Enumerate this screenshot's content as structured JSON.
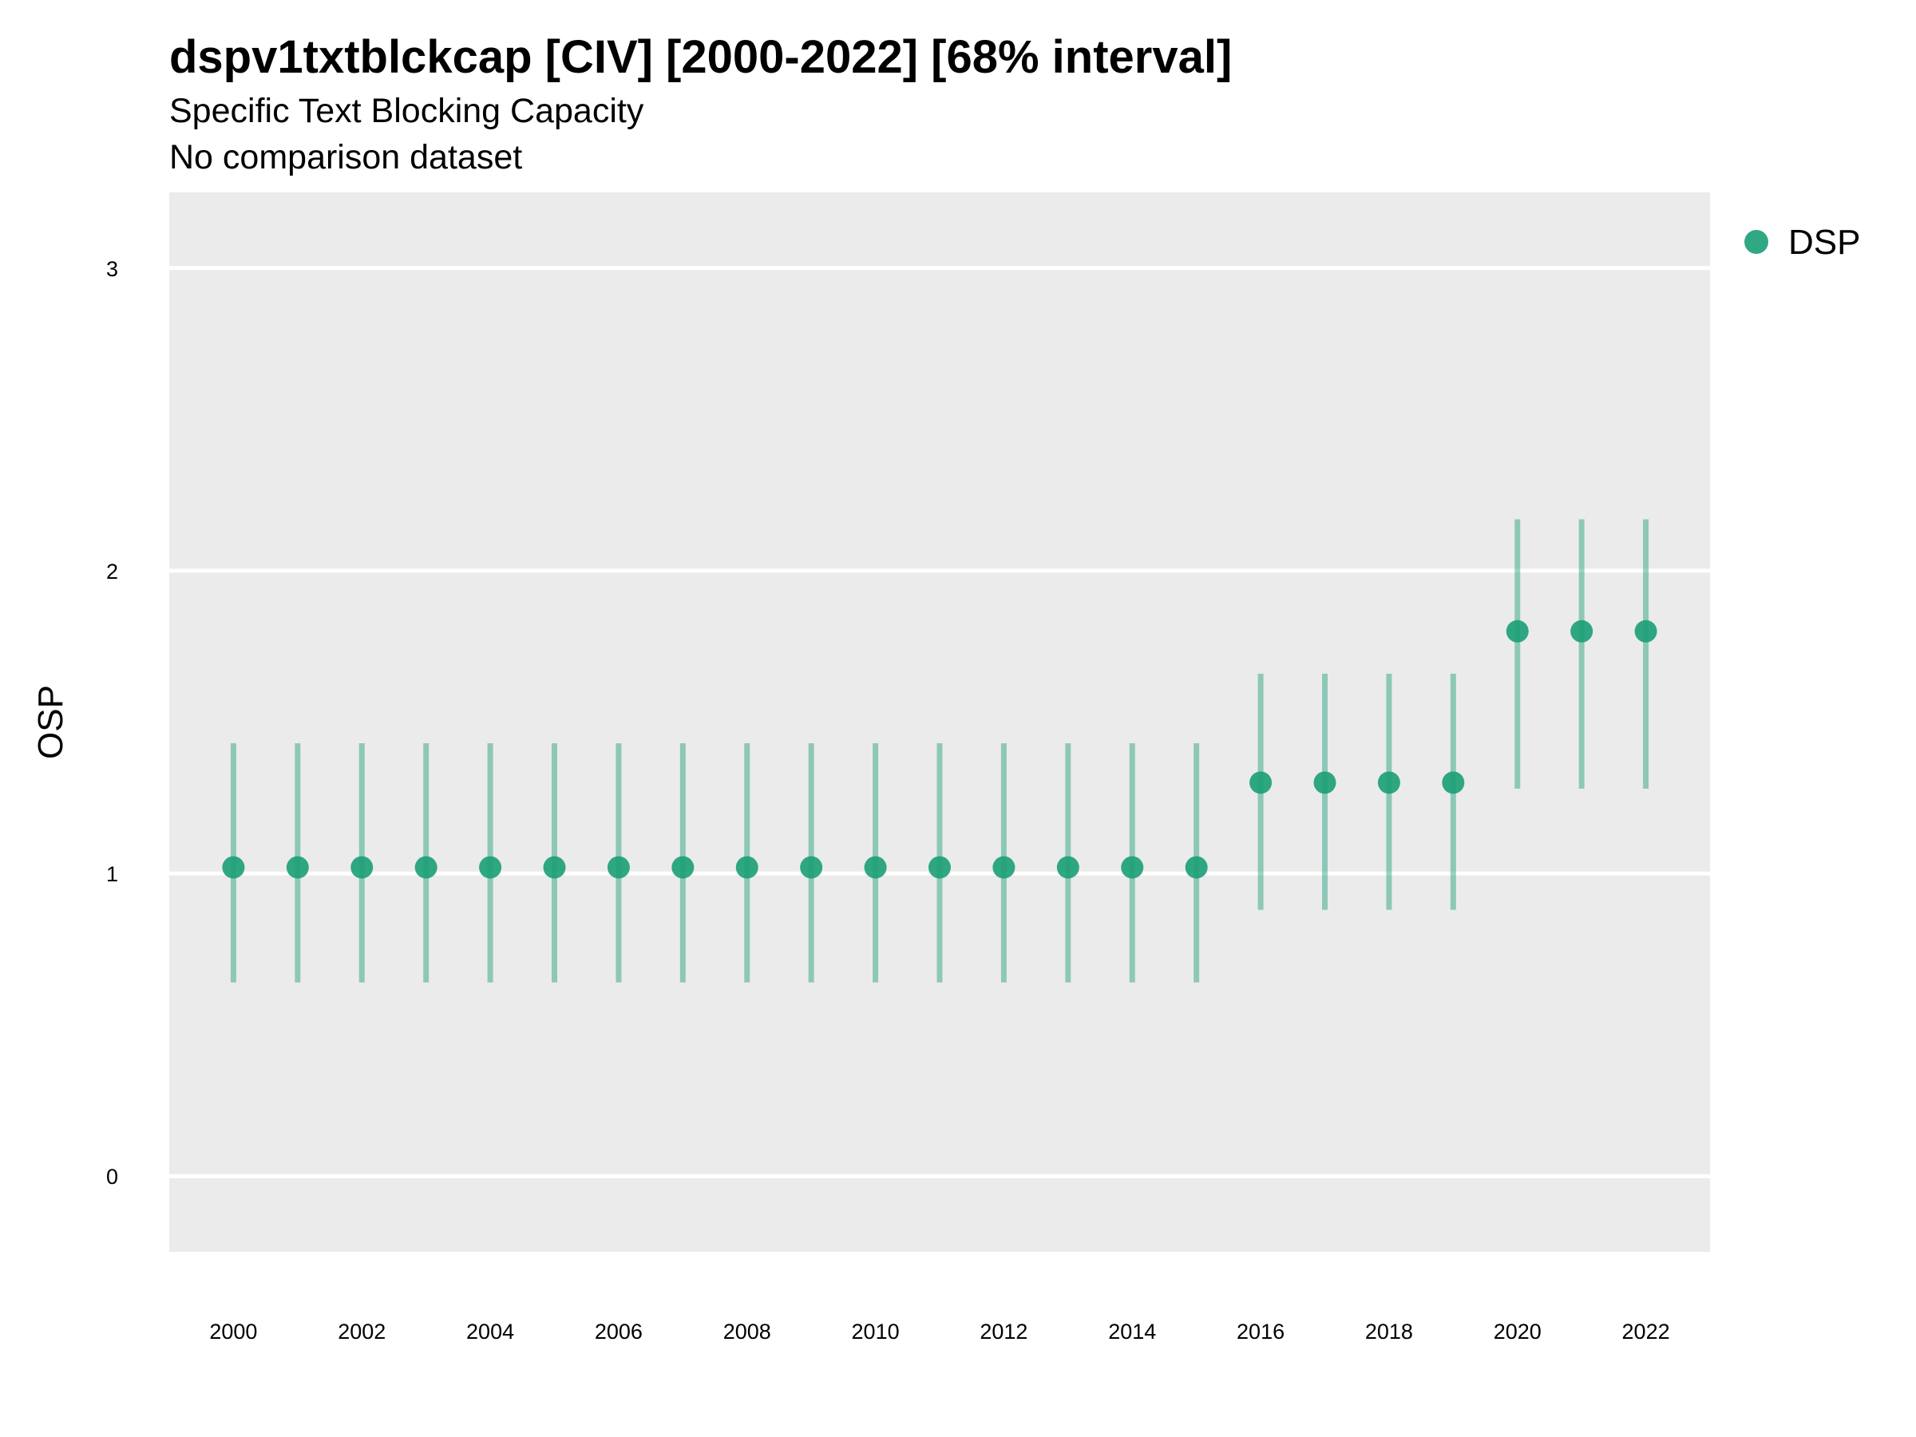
{
  "chart_data": {
    "type": "scatter",
    "title": "dspv1txtblckcap [CIV] [2000-2022] [68% interval]",
    "subtitle": "Specific Text Blocking Capacity",
    "caption": "No comparison dataset",
    "xlabel": "",
    "ylabel": "OSP",
    "ylim": [
      -0.25,
      3.25
    ],
    "xlim": [
      1999,
      2023
    ],
    "y_ticks": [
      0,
      1,
      2,
      3
    ],
    "x_ticks": [
      2000,
      2002,
      2004,
      2006,
      2008,
      2010,
      2012,
      2014,
      2016,
      2018,
      2020,
      2022
    ],
    "grid": true,
    "legend_position": "top-right",
    "series": [
      {
        "name": "DSP",
        "color": "#1b9e77",
        "x": [
          2000,
          2001,
          2002,
          2003,
          2004,
          2005,
          2006,
          2007,
          2008,
          2009,
          2010,
          2011,
          2012,
          2013,
          2014,
          2015,
          2016,
          2017,
          2018,
          2019,
          2020,
          2021,
          2022
        ],
        "y": [
          1.02,
          1.02,
          1.02,
          1.02,
          1.02,
          1.02,
          1.02,
          1.02,
          1.02,
          1.02,
          1.02,
          1.02,
          1.02,
          1.02,
          1.02,
          1.02,
          1.3,
          1.3,
          1.3,
          1.3,
          1.8,
          1.8,
          1.8
        ],
        "lower": [
          0.64,
          0.64,
          0.64,
          0.64,
          0.64,
          0.64,
          0.64,
          0.64,
          0.64,
          0.64,
          0.64,
          0.64,
          0.64,
          0.64,
          0.64,
          0.64,
          0.88,
          0.88,
          0.88,
          0.88,
          1.28,
          1.28,
          1.28
        ],
        "upper": [
          1.43,
          1.43,
          1.43,
          1.43,
          1.43,
          1.43,
          1.43,
          1.43,
          1.43,
          1.43,
          1.43,
          1.43,
          1.43,
          1.43,
          1.43,
          1.43,
          1.66,
          1.66,
          1.66,
          1.66,
          2.17,
          2.17,
          2.17
        ]
      }
    ]
  }
}
